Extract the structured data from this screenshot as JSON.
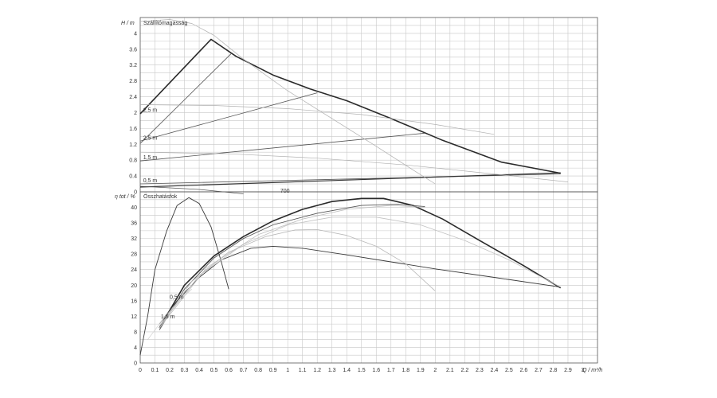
{
  "chart_data": [
    {
      "type": "line",
      "panel": "head",
      "title": "Szállítómagasság",
      "ylabel": "H / m",
      "xlim": [
        0,
        3.1
      ],
      "ylim": [
        0,
        4.4
      ],
      "yticks": [
        0,
        0.4,
        0.8,
        1.2,
        1.6,
        2,
        2.4,
        2.8,
        3.2,
        3.6,
        4
      ],
      "ytick_labels": [
        "0",
        "0.4",
        "0.8",
        "1.2",
        "1.6",
        "2",
        "2.4",
        "2.8",
        "3.2",
        "3.6",
        "4"
      ],
      "series": [
        {
          "values": [
            [
              0,
              1.97
            ],
            [
              0.48,
              3.85
            ],
            [
              0.65,
              3.42
            ],
            [
              0.9,
              2.95
            ],
            [
              1.15,
              2.6
            ],
            [
              1.4,
              2.3
            ],
            [
              1.7,
              1.85
            ],
            [
              2.05,
              1.3
            ],
            [
              2.45,
              0.75
            ],
            [
              2.85,
              0.47
            ]
          ],
          "color": "#2a2a2a",
          "width": 1.6
        },
        {
          "values": [
            [
              0,
              1.22
            ],
            [
              0.62,
              3.5
            ]
          ],
          "color": "#555555",
          "width": 0.8
        },
        {
          "values": [
            [
              0,
              1.28
            ],
            [
              1.2,
              2.5
            ]
          ],
          "color": "#555555",
          "width": 0.8
        },
        {
          "values": [
            [
              0,
              0.78
            ],
            [
              1.93,
              1.48
            ]
          ],
          "color": "#555555",
          "width": 0.8
        },
        {
          "values": [
            [
              0,
              0.2
            ],
            [
              2.85,
              0.45
            ]
          ],
          "color": "#555555",
          "width": 0.8
        },
        {
          "values": [
            [
              0,
              0.12
            ],
            [
              2.85,
              0.48
            ]
          ],
          "color": "#333333",
          "width": 1.2
        },
        {
          "values": [
            [
              0,
              4.3
            ],
            [
              0.2,
              4.35
            ],
            [
              0.35,
              4.25
            ],
            [
              0.5,
              3.95
            ],
            [
              0.7,
              3.35
            ],
            [
              1.0,
              2.55
            ],
            [
              1.3,
              1.85
            ],
            [
              1.6,
              1.15
            ],
            [
              1.85,
              0.55
            ],
            [
              2.0,
              0.2
            ]
          ],
          "color": "#b0b0b0",
          "width": 0.7
        },
        {
          "values": [
            [
              0,
              2.2
            ],
            [
              0.5,
              2.18
            ],
            [
              1.0,
              2.1
            ],
            [
              1.5,
              1.95
            ],
            [
              2.0,
              1.7
            ],
            [
              2.4,
              1.45
            ]
          ],
          "color": "#b0b0b0",
          "width": 0.7
        },
        {
          "values": [
            [
              0,
              1.0
            ],
            [
              0.6,
              0.96
            ],
            [
              1.2,
              0.85
            ],
            [
              1.8,
              0.68
            ],
            [
              2.4,
              0.45
            ],
            [
              2.9,
              0.25
            ]
          ],
          "color": "#b0b0b0",
          "width": 0.7
        },
        {
          "values": [
            [
              0,
              0.14
            ],
            [
              0.4,
              0.06
            ],
            [
              0.7,
              -0.05
            ]
          ],
          "color": "#555555",
          "width": 0.7
        }
      ],
      "annotations": [
        {
          "text": "2,5 m",
          "x": 0.02,
          "y": 2.02
        },
        {
          "text": "2,5 m",
          "x": 0.02,
          "y": 1.32
        },
        {
          "text": "1,5 m",
          "x": 0.02,
          "y": 0.82
        },
        {
          "text": "0,5 m",
          "x": 0.02,
          "y": 0.24
        },
        {
          "text": "700",
          "x": 0.95,
          "y": -0.02
        }
      ]
    },
    {
      "type": "line",
      "panel": "efficiency",
      "title": "Összhatásfok",
      "ylabel": "η tot / %",
      "xlabel": "Q / m³/h",
      "xlim": [
        0,
        3.1
      ],
      "ylim": [
        0,
        44
      ],
      "yticks": [
        0,
        4,
        8,
        12,
        16,
        20,
        24,
        28,
        32,
        36,
        40
      ],
      "ytick_labels": [
        "0",
        "4",
        "8",
        "12",
        "16",
        "20",
        "24",
        "28",
        "32",
        "36",
        "40"
      ],
      "xticks": [
        0,
        0.1,
        0.2,
        0.3,
        0.4,
        0.5,
        0.6,
        0.7,
        0.8,
        0.9,
        1,
        1.1,
        1.2,
        1.3,
        1.4,
        1.5,
        1.6,
        1.7,
        1.8,
        1.9,
        2,
        2.1,
        2.2,
        2.3,
        2.4,
        2.5,
        2.6,
        2.7,
        2.8,
        2.9,
        3
      ],
      "xtick_labels": [
        "0",
        "0.1",
        "0.2",
        "0.3",
        "0.4",
        "0.5",
        "0.6",
        "0.7",
        "0.8",
        "0.9",
        "1",
        "1.1",
        "1.2",
        "1.3",
        "1.4",
        "1.5",
        "1.6",
        "1.7",
        "1.8",
        "1.9",
        "2",
        "2.1",
        "2.2",
        "2.3",
        "2.4",
        "2.5",
        "2.6",
        "2.7",
        "2.8",
        "2.9",
        "3"
      ],
      "series": [
        {
          "values": [
            [
              0.13,
              9
            ],
            [
              0.3,
              20
            ],
            [
              0.5,
              27.5
            ],
            [
              0.7,
              32.5
            ],
            [
              0.9,
              36.5
            ],
            [
              1.1,
              39.5
            ],
            [
              1.3,
              41.5
            ],
            [
              1.5,
              42.3
            ],
            [
              1.65,
              42.3
            ],
            [
              1.85,
              40.5
            ],
            [
              2.05,
              37
            ],
            [
              2.3,
              31.5
            ],
            [
              2.6,
              25
            ],
            [
              2.85,
              19.3
            ]
          ],
          "color": "#2a2a2a",
          "width": 1.6
        },
        {
          "values": [
            [
              0.13,
              8.5
            ],
            [
              0.3,
              19
            ],
            [
              0.5,
              27
            ],
            [
              0.7,
              32
            ],
            [
              0.9,
              35.5
            ],
            [
              1.2,
              38.5
            ],
            [
              1.5,
              40.5
            ],
            [
              1.75,
              40.8
            ],
            [
              1.93,
              40.2
            ]
          ],
          "color": "#555555",
          "width": 0.9
        },
        {
          "values": [
            [
              0.13,
              10
            ],
            [
              0.25,
              16
            ],
            [
              0.4,
              22
            ],
            [
              0.55,
              26.5
            ],
            [
              0.75,
              29.5
            ],
            [
              0.9,
              30
            ],
            [
              1.1,
              29.5
            ],
            [
              1.4,
              27.8
            ],
            [
              1.7,
              26
            ],
            [
              2.0,
              24.2
            ],
            [
              2.4,
              22
            ],
            [
              2.85,
              19.5
            ]
          ],
          "color": "#3a3a3a",
          "width": 0.9
        },
        {
          "values": [
            [
              0,
              2
            ],
            [
              0.05,
              12
            ],
            [
              0.1,
              24
            ],
            [
              0.18,
              34
            ],
            [
              0.25,
              40.5
            ],
            [
              0.33,
              42.5
            ],
            [
              0.4,
              41
            ],
            [
              0.48,
              35
            ],
            [
              0.55,
              26
            ],
            [
              0.6,
              19
            ]
          ],
          "color": "#3a3a3a",
          "width": 0.9
        },
        {
          "values": [
            [
              0.13,
              9
            ],
            [
              0.35,
              21
            ],
            [
              0.6,
              28.5
            ],
            [
              0.85,
              32.5
            ],
            [
              1.05,
              34.2
            ],
            [
              1.2,
              34.3
            ],
            [
              1.4,
              32.8
            ],
            [
              1.6,
              30
            ],
            [
              1.8,
              25.5
            ],
            [
              2.0,
              18.5
            ]
          ],
          "color": "#b8b8b8",
          "width": 0.8
        },
        {
          "values": [
            [
              0.13,
              9.5
            ],
            [
              0.4,
              22.5
            ],
            [
              0.7,
              30.5
            ],
            [
              1.0,
              35.5
            ],
            [
              1.3,
              37.5
            ],
            [
              1.6,
              37.5
            ],
            [
              1.9,
              35.5
            ],
            [
              2.2,
              31.5
            ],
            [
              2.5,
              26.5
            ],
            [
              2.85,
              19.5
            ]
          ],
          "color": "#c2c2c2",
          "width": 0.8
        },
        {
          "values": [
            [
              0.13,
              9
            ],
            [
              0.45,
              24.5
            ],
            [
              0.8,
              33
            ],
            [
              1.1,
              37
            ],
            [
              1.4,
              39.5
            ],
            [
              1.7,
              40.5
            ],
            [
              1.93,
              40
            ]
          ],
          "color": "#bdbdbd",
          "width": 0.8
        },
        {
          "values": [
            [
              0.05,
              6
            ],
            [
              0.15,
              11
            ],
            [
              0.25,
              15.5
            ],
            [
              0.35,
              19
            ]
          ],
          "color": "#cfcfcf",
          "width": 0.7
        }
      ],
      "annotations": [
        {
          "text": "0,5 m",
          "x": 0.2,
          "y": 16.5
        },
        {
          "text": "1,5 m",
          "x": 0.14,
          "y": 11.5
        }
      ]
    }
  ]
}
